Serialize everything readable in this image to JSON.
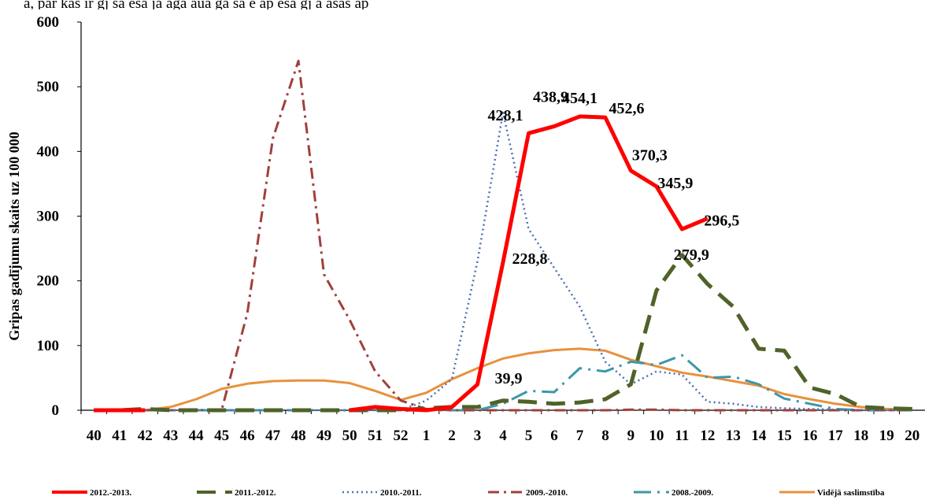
{
  "chart_data": {
    "type": "line",
    "title": "",
    "xlabel": "",
    "ylabel": "Gripas gadījumu skaits uz 100 000",
    "ylim": [
      0,
      600
    ],
    "yticks": [
      "0",
      "100",
      "200",
      "300",
      "400",
      "500",
      "600"
    ],
    "categories": [
      "40",
      "41",
      "42",
      "43",
      "44",
      "45",
      "46",
      "47",
      "48",
      "49",
      "50",
      "51",
      "52",
      "1",
      "2",
      "3",
      "4",
      "5",
      "6",
      "7",
      "8",
      "9",
      "10",
      "11",
      "12",
      "13",
      "14",
      "15",
      "16",
      "17",
      "18",
      "19",
      "20"
    ],
    "legend_position": "bottom",
    "grid": false,
    "series": [
      {
        "name": "2012.-2013.",
        "color": "#ff0000",
        "style": "solid-thick",
        "values": [
          0,
          0,
          0,
          null,
          null,
          null,
          null,
          null,
          null,
          null,
          0,
          5,
          2,
          0,
          5,
          39.9,
          228.8,
          428.1,
          438.9,
          454.1,
          452.6,
          370.3,
          345.9,
          279.9,
          296.5,
          null,
          null,
          null,
          null,
          null,
          null,
          null,
          null
        ]
      },
      {
        "name": "2011.-2012.",
        "color": "#4f6228",
        "style": "long-dash",
        "values": [
          0,
          0,
          2,
          0,
          0,
          0,
          0,
          0,
          0,
          0,
          0,
          0,
          0,
          3,
          5,
          5,
          15,
          13,
          10,
          12,
          17,
          40,
          185,
          240,
          195,
          160,
          95,
          92,
          35,
          25,
          5,
          3,
          2
        ]
      },
      {
        "name": "2010.-2011.",
        "color": "#4a70b0",
        "style": "dotted",
        "values": [
          0,
          0,
          0,
          0,
          0,
          0,
          0,
          0,
          0,
          0,
          0,
          0,
          0,
          15,
          48,
          230,
          460,
          280,
          220,
          160,
          75,
          40,
          60,
          55,
          13,
          10,
          5,
          3,
          2,
          1,
          0,
          0,
          0
        ]
      },
      {
        "name": "2009.-2010.",
        "color": "#a0403c",
        "style": "dash-dot",
        "values": [
          0,
          0,
          0,
          0,
          0,
          1,
          150,
          420,
          540,
          210,
          140,
          60,
          15,
          2,
          0,
          0,
          0,
          0,
          0,
          0,
          0,
          1,
          1,
          0,
          0,
          0,
          0,
          0,
          0,
          0,
          0,
          0,
          0
        ]
      },
      {
        "name": "2008.-2009.",
        "color": "#3c97aa",
        "style": "long-dash-dot",
        "values": [
          0,
          0,
          0,
          0,
          0,
          0,
          0,
          0,
          0,
          0,
          0,
          0,
          0,
          0,
          0,
          0,
          10,
          30,
          28,
          65,
          60,
          75,
          70,
          85,
          50,
          52,
          40,
          18,
          10,
          2,
          0,
          0,
          0
        ]
      },
      {
        "name": "Vidējā saslimstība",
        "color": "#e8913c",
        "style": "solid",
        "values": [
          0,
          0,
          0,
          5,
          17,
          33,
          41,
          45,
          46,
          46,
          42,
          30,
          16,
          27,
          48,
          65,
          80,
          88,
          93,
          95,
          92,
          78,
          68,
          58,
          52,
          45,
          38,
          25,
          17,
          10,
          5,
          2,
          1
        ]
      }
    ],
    "data_labels": [
      "39,9",
      "228,8",
      "428,1",
      "438,9",
      "454,1",
      "452,6",
      "370,3",
      "345,9",
      "279,9",
      "296,5"
    ]
  },
  "top_fragment": "ā, par kas ir ģj sa esa ja agā aūa ga ša e ap esa ģj a asas ap"
}
